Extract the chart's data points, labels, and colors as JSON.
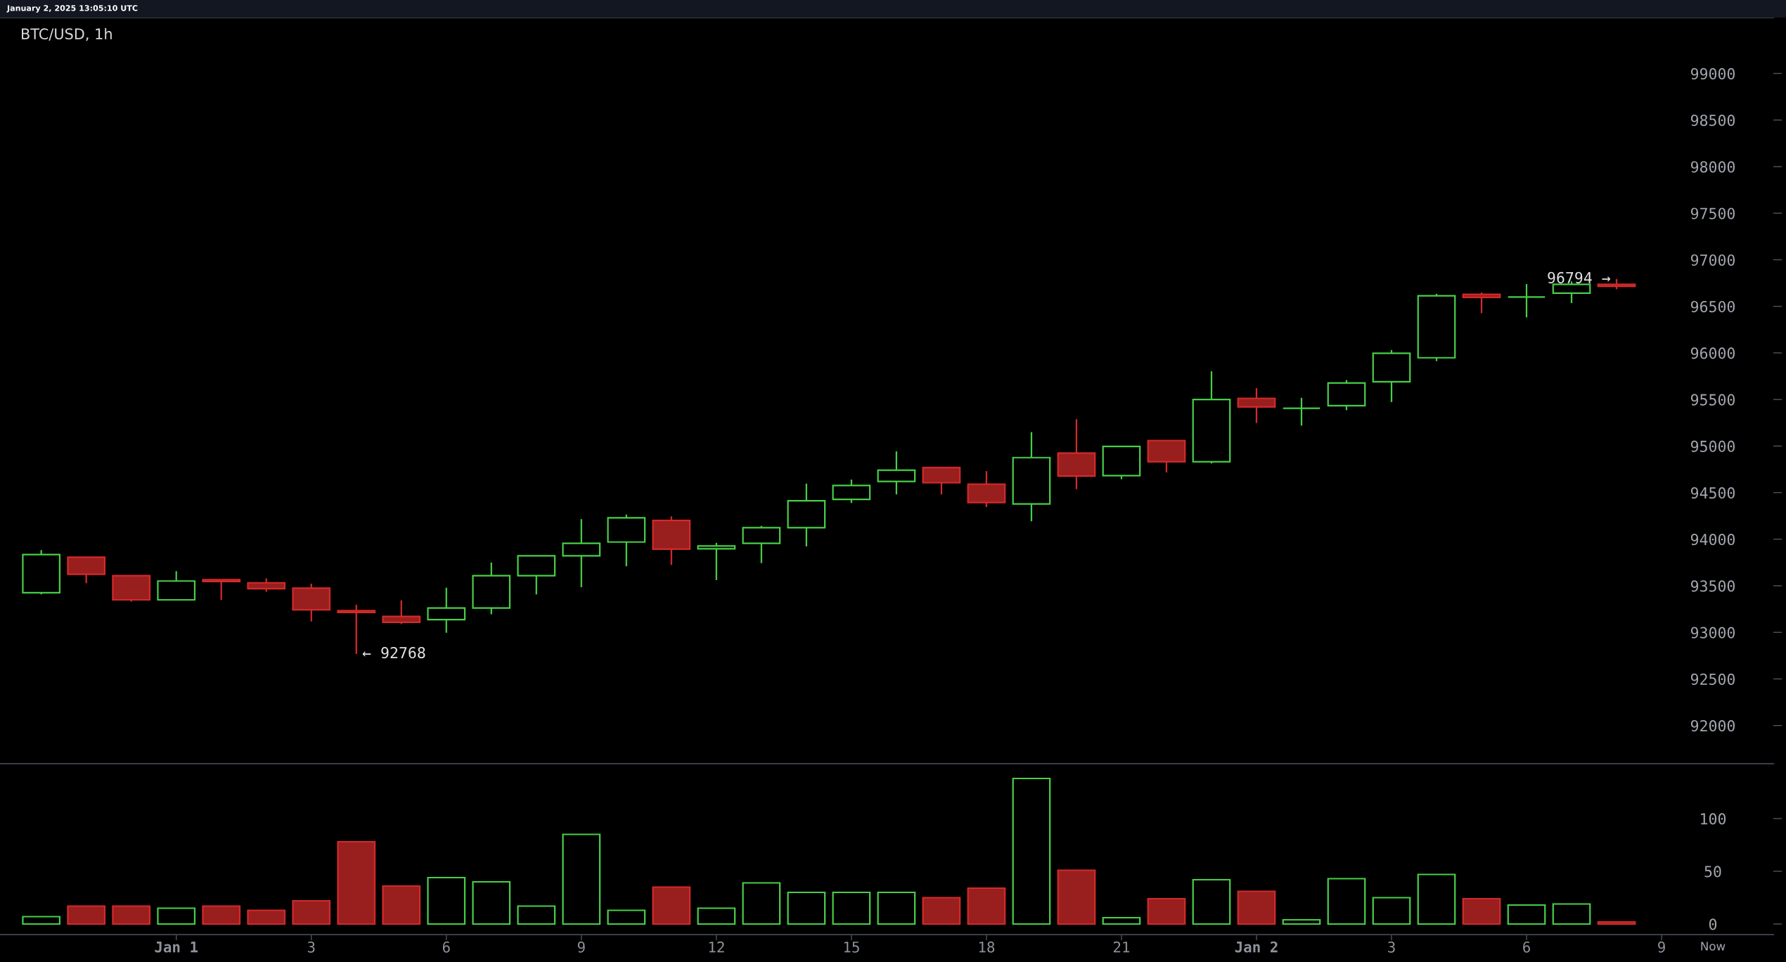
{
  "chart_data": [
    {
      "type": "candlestick",
      "title": "BTC/USD, 1h",
      "x": [
        "2024-12-31T21:00",
        "2024-12-31T22:00",
        "2024-12-31T23:00",
        "2025-01-01T00:00",
        "2025-01-01T01:00",
        "2025-01-01T02:00",
        "2025-01-01T03:00",
        "2025-01-01T04:00",
        "2025-01-01T05:00",
        "2025-01-01T06:00",
        "2025-01-01T07:00",
        "2025-01-01T08:00",
        "2025-01-01T09:00",
        "2025-01-01T10:00",
        "2025-01-01T11:00",
        "2025-01-01T12:00",
        "2025-01-01T13:00",
        "2025-01-01T14:00",
        "2025-01-01T15:00",
        "2025-01-01T16:00",
        "2025-01-01T17:00",
        "2025-01-01T18:00",
        "2025-01-01T19:00",
        "2025-01-01T20:00",
        "2025-01-01T21:00",
        "2025-01-01T22:00",
        "2025-01-01T23:00",
        "2025-01-02T00:00",
        "2025-01-02T01:00",
        "2025-01-02T02:00",
        "2025-01-02T03:00",
        "2025-01-02T04:00",
        "2025-01-02T05:00",
        "2025-01-02T06:00",
        "2025-01-02T07:00",
        "2025-01-02T08:00"
      ],
      "ohlc": [
        [
          93426,
          93883,
          93407,
          93835
        ],
        [
          93806,
          93806,
          93527,
          93623
        ],
        [
          93609,
          93609,
          93329,
          93349
        ],
        [
          93349,
          93657,
          93349,
          93551
        ],
        [
          93565,
          93565,
          93349,
          93546
        ],
        [
          93532,
          93580,
          93435,
          93469
        ],
        [
          93474,
          93522,
          93117,
          93243
        ],
        [
          93233,
          93296,
          92768,
          93214
        ],
        [
          93170,
          93344,
          93089,
          93108
        ],
        [
          93137,
          93479,
          92997,
          93262
        ],
        [
          93262,
          93749,
          93195,
          93609
        ],
        [
          93609,
          93821,
          93407,
          93821
        ],
        [
          93821,
          94216,
          93484,
          93956
        ],
        [
          93970,
          94264,
          93710,
          94230
        ],
        [
          94201,
          94245,
          93724,
          93893
        ],
        [
          93898,
          93960,
          93560,
          93927
        ],
        [
          93955,
          94143,
          93743,
          94124
        ],
        [
          94124,
          94596,
          93922,
          94413
        ],
        [
          94428,
          94640,
          94389,
          94577
        ],
        [
          94620,
          94943,
          94481,
          94741
        ],
        [
          94770,
          94770,
          94481,
          94606
        ],
        [
          94591,
          94731,
          94346,
          94394
        ],
        [
          94379,
          95150,
          94192,
          94876
        ],
        [
          94924,
          95290,
          94538,
          94678
        ],
        [
          94683,
          94996,
          94644,
          94996
        ],
        [
          95059,
          95059,
          94717,
          94832
        ],
        [
          94832,
          95802,
          94813,
          95500
        ],
        [
          95512,
          95622,
          95247,
          95420
        ],
        [
          95406,
          95517,
          95219,
          95406
        ],
        [
          95434,
          95708,
          95385,
          95677
        ],
        [
          95691,
          96031,
          95472,
          95996
        ],
        [
          95948,
          96635,
          95913,
          96614
        ],
        [
          96628,
          96649,
          96427,
          96597
        ],
        [
          96600,
          96739,
          96382,
          96600
        ],
        [
          96642,
          96767,
          96534,
          96736
        ],
        [
          96736,
          96794,
          96684,
          96715
        ]
      ],
      "colors": [
        "#47cf47",
        "#d42a2a",
        "#d42a2a",
        "#47cf47",
        "#d42a2a",
        "#d42a2a",
        "#d42a2a",
        "#d42a2a",
        "#d42a2a",
        "#47cf47",
        "#47cf47",
        "#47cf47",
        "#47cf47",
        "#47cf47",
        "#d42a2a",
        "#47cf47",
        "#47cf47",
        "#47cf47",
        "#47cf47",
        "#47cf47",
        "#d42a2a",
        "#d42a2a",
        "#47cf47",
        "#d42a2a",
        "#47cf47",
        "#d42a2a",
        "#47cf47",
        "#d42a2a",
        "#47cf47",
        "#47cf47",
        "#47cf47",
        "#47cf47",
        "#d42a2a",
        "#47cf47",
        "#47cf47",
        "#d42a2a"
      ],
      "xlim": [
        "2024-12-31T20:05",
        "2025-01-02T11:29"
      ],
      "ylim": [
        91590,
        99600
      ],
      "yticks": [
        92000,
        92500,
        93000,
        93500,
        94000,
        94500,
        95000,
        95500,
        96000,
        96500,
        97000,
        97500,
        98000,
        98500,
        99000
      ],
      "tick_labels": "y",
      "annotations": [
        {
          "text": "← 92768",
          "x": "2025-01-01T04:00",
          "y": 92768
        },
        {
          "text": "96794 →",
          "x": "2025-01-02T08:00",
          "y": 96794
        },
        "January 2, 2025 13:05:10 UTC"
      ]
    },
    {
      "type": "bar",
      "x": [
        "2024-12-31T21:00",
        "2024-12-31T22:00",
        "2024-12-31T23:00",
        "2025-01-01T00:00",
        "2025-01-01T01:00",
        "2025-01-01T02:00",
        "2025-01-01T03:00",
        "2025-01-01T04:00",
        "2025-01-01T05:00",
        "2025-01-01T06:00",
        "2025-01-01T07:00",
        "2025-01-01T08:00",
        "2025-01-01T09:00",
        "2025-01-01T10:00",
        "2025-01-01T11:00",
        "2025-01-01T12:00",
        "2025-01-01T13:00",
        "2025-01-01T14:00",
        "2025-01-01T15:00",
        "2025-01-01T16:00",
        "2025-01-01T17:00",
        "2025-01-01T18:00",
        "2025-01-01T19:00",
        "2025-01-01T20:00",
        "2025-01-01T21:00",
        "2025-01-01T22:00",
        "2025-01-01T23:00",
        "2025-01-02T00:00",
        "2025-01-02T01:00",
        "2025-01-02T02:00",
        "2025-01-02T03:00",
        "2025-01-02T04:00",
        "2025-01-02T05:00",
        "2025-01-02T06:00",
        "2025-01-02T07:00",
        "2025-01-02T08:00"
      ],
      "values": [
        7,
        17,
        17,
        15,
        17,
        13,
        22,
        78,
        36,
        44,
        40,
        17,
        85,
        13,
        35,
        15,
        39,
        30,
        30,
        30,
        25,
        34,
        138,
        51,
        6,
        24,
        42,
        31,
        4,
        43,
        25,
        47,
        24,
        18,
        19,
        2
      ],
      "colors": [
        "#47cf47",
        "#d42a2a",
        "#d42a2a",
        "#47cf47",
        "#d42a2a",
        "#d42a2a",
        "#d42a2a",
        "#d42a2a",
        "#d42a2a",
        "#47cf47",
        "#47cf47",
        "#47cf47",
        "#47cf47",
        "#47cf47",
        "#d42a2a",
        "#47cf47",
        "#47cf47",
        "#47cf47",
        "#47cf47",
        "#47cf47",
        "#d42a2a",
        "#d42a2a",
        "#47cf47",
        "#d42a2a",
        "#47cf47",
        "#d42a2a",
        "#47cf47",
        "#d42a2a",
        "#47cf47",
        "#47cf47",
        "#47cf47",
        "#47cf47",
        "#d42a2a",
        "#47cf47",
        "#47cf47",
        "#d42a2a"
      ],
      "xlim": [
        "2024-12-31T20:05",
        "2025-01-02T11:29"
      ],
      "ylim": [
        -10,
        152
      ],
      "yticks": [
        0,
        50,
        100
      ],
      "xticks": [
        {
          "value": "2025-01-01T00:00",
          "label": "Jan 1"
        },
        {
          "value": "2025-01-01T03:00",
          "label": "3"
        },
        {
          "value": "2025-01-01T06:00",
          "label": "6"
        },
        {
          "value": "2025-01-01T09:00",
          "label": "9"
        },
        {
          "value": "2025-01-01T12:00",
          "label": "12"
        },
        {
          "value": "2025-01-01T15:00",
          "label": "15"
        },
        {
          "value": "2025-01-01T18:00",
          "label": "18"
        },
        {
          "value": "2025-01-01T21:00",
          "label": "21"
        },
        {
          "value": "2025-01-02T00:00",
          "label": "Jan 2"
        },
        {
          "value": "2025-01-02T03:00",
          "label": "3"
        },
        {
          "value": "2025-01-02T06:00",
          "label": "6"
        },
        {
          "value": "2025-01-02T09:00",
          "label": "9"
        }
      ],
      "annotations": [
        "Now"
      ]
    }
  ]
}
